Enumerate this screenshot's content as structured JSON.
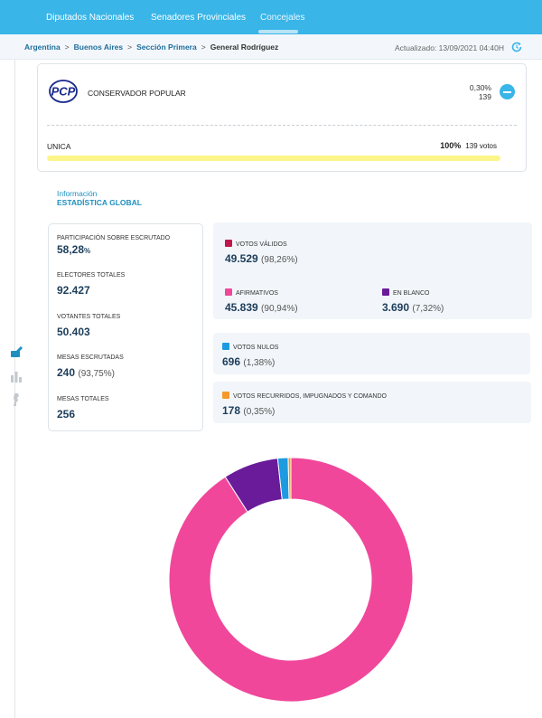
{
  "nav": {
    "tabs": [
      {
        "label": "Diputados Nacionales"
      },
      {
        "label": "Senadores Provinciales"
      },
      {
        "label": "Concejales"
      }
    ]
  },
  "breadcrumb": [
    "Argentina",
    "Buenos Aires",
    "Sección Primera",
    "General Rodríguez"
  ],
  "breadcrumb_separator": ">",
  "updated": "Actualizado: 13/09/2021 04:40H",
  "party_card": {
    "logo_text": "PCP",
    "party_name": "CONSERVADOR POPULAR",
    "percent": "0,30%",
    "votes": "139",
    "list_name": "UNICA",
    "list_percent": "100%",
    "list_votes": "139 votos",
    "list_progress": 1.0,
    "bar_color": "#fcf68a"
  },
  "info": {
    "subtitle": "Información",
    "title": "ESTADÍSTICA GLOBAL"
  },
  "stats": {
    "participacion_label": "PARTICIPACIÓN SOBRE ESCRUTADO",
    "participacion_value": "58,28",
    "participacion_unit": "%",
    "electores_label": "ELECTORES TOTALES",
    "electores_value": "92.427",
    "votantes_label": "VOTANTES TOTALES",
    "votantes_value": "50.403",
    "mesas_escrutadas_label": "MESAS ESCRUTADAS",
    "mesas_escrutadas_value": "240",
    "mesas_escrutadas_pct": "(93,75%)",
    "mesas_totales_label": "MESAS TOTALES",
    "mesas_totales_value": "256"
  },
  "votes": {
    "validos": {
      "label": "VOTOS VÁLIDOS",
      "value": "49.529",
      "pct": "(98,26%)",
      "color": "#c0174f"
    },
    "afirmativos": {
      "label": "AFIRMATIVOS",
      "value": "45.839",
      "pct": "(90,94%)",
      "color": "#f0479b"
    },
    "en_blanco": {
      "label": "EN BLANCO",
      "value": "3.690",
      "pct": "(7,32%)",
      "color": "#6a1b9a"
    },
    "nulos": {
      "label": "VOTOS NULOS",
      "value": "696",
      "pct": "(1,38%)",
      "color": "#1e9be0"
    },
    "recurridos": {
      "label": "VOTOS RECURRIDOS, IMPUGNADOS Y COMANDO",
      "value": "178",
      "pct": "(0,35%)",
      "color": "#f39a2b"
    }
  },
  "donut": {
    "segments": [
      {
        "value": 45839,
        "color": "#f0479b"
      },
      {
        "value": 3690,
        "color": "#6a1b9a"
      },
      {
        "value": 696,
        "color": "#1e9be0"
      },
      {
        "value": 178,
        "color": "#f39a2b"
      }
    ]
  }
}
